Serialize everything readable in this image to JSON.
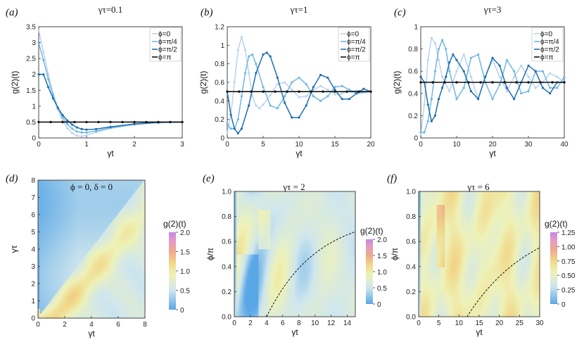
{
  "colors": {
    "phi0": "#bcd3ee",
    "phi_pi4": "#6fb8e2",
    "phi_pi2": "#1f6fb0",
    "phi_pi": "#111111"
  },
  "chart_data": [
    {
      "id": "a",
      "type": "line",
      "panel_label": "(a)",
      "title": "γτ=0.1",
      "xlabel": "γt",
      "ylabel": "g(2)(t)",
      "xlim": [
        0,
        3
      ],
      "ylim": [
        0,
        3.5
      ],
      "xticks": [
        "0",
        "1",
        "2",
        "3"
      ],
      "yticks": [
        "0",
        "0.5",
        "1",
        "1.5",
        "2",
        "2.5",
        "3",
        "3.5"
      ],
      "legend": [
        "ϕ=0",
        "ϕ=π/4",
        "ϕ=π/2",
        "ϕ=π"
      ],
      "series": [
        {
          "name": "ϕ=0",
          "x": [
            0,
            0.1,
            0.2,
            0.3,
            0.4,
            0.5,
            0.6,
            0.7,
            0.8,
            0.9,
            1.0,
            1.2,
            1.5,
            2.0,
            2.5,
            3.0
          ],
          "y": [
            3.4,
            2.7,
            2.0,
            1.4,
            0.9,
            0.55,
            0.3,
            0.15,
            0.07,
            0.05,
            0.08,
            0.18,
            0.3,
            0.42,
            0.48,
            0.5
          ]
        },
        {
          "name": "ϕ=π/4",
          "x": [
            0,
            0.1,
            0.2,
            0.3,
            0.4,
            0.5,
            0.6,
            0.7,
            0.8,
            0.9,
            1.0,
            1.2,
            1.5,
            2.0,
            2.5,
            3.0
          ],
          "y": [
            3.0,
            2.45,
            1.85,
            1.35,
            0.95,
            0.65,
            0.43,
            0.29,
            0.2,
            0.17,
            0.17,
            0.22,
            0.32,
            0.43,
            0.48,
            0.5
          ]
        },
        {
          "name": "ϕ=π/2",
          "x": [
            0,
            0.1,
            0.2,
            0.3,
            0.4,
            0.5,
            0.6,
            0.7,
            0.8,
            0.9,
            1.0,
            1.2,
            1.5,
            2.0,
            2.5,
            3.0
          ],
          "y": [
            2.0,
            2.0,
            1.6,
            1.25,
            0.95,
            0.72,
            0.55,
            0.42,
            0.33,
            0.28,
            0.26,
            0.28,
            0.35,
            0.44,
            0.49,
            0.5
          ]
        },
        {
          "name": "ϕ=π",
          "x": [
            0,
            3
          ],
          "y": [
            0.5,
            0.5
          ]
        }
      ]
    },
    {
      "id": "b",
      "type": "line",
      "panel_label": "(b)",
      "title": "γτ=1",
      "xlabel": "γt",
      "ylabel": "g(2)(t)",
      "xlim": [
        0,
        20
      ],
      "ylim": [
        0,
        1.2
      ],
      "xticks": [
        "0",
        "5",
        "10",
        "15",
        "20"
      ],
      "yticks": [
        "0",
        "0.2",
        "0.4",
        "0.6",
        "0.8",
        "1",
        "1.2"
      ],
      "legend": [
        "ϕ=0",
        "ϕ=π/4",
        "ϕ=π/2",
        "ϕ=π"
      ],
      "series": [
        {
          "name": "ϕ=0",
          "x": [
            0,
            0.5,
            1.0,
            1.5,
            2.0,
            2.5,
            3.0,
            3.5,
            4.0,
            4.5,
            5.0,
            6.0,
            7.0,
            8.0,
            9.0,
            10.0,
            11.0,
            12.0,
            13.0,
            14.0,
            15.0,
            16.0,
            17.0,
            18.0,
            20.0
          ],
          "y": [
            0.05,
            0.25,
            0.6,
            0.95,
            1.09,
            0.95,
            0.7,
            0.45,
            0.35,
            0.32,
            0.36,
            0.46,
            0.58,
            0.6,
            0.52,
            0.44,
            0.45,
            0.52,
            0.56,
            0.52,
            0.47,
            0.48,
            0.51,
            0.51,
            0.5
          ]
        },
        {
          "name": "ϕ=π/4",
          "x": [
            0,
            0.5,
            1.0,
            1.5,
            2.0,
            2.5,
            3.0,
            3.5,
            4.0,
            5.0,
            6.0,
            7.0,
            8.0,
            9.0,
            10.0,
            11.0,
            12.0,
            13.0,
            14.0,
            15.0,
            16.0,
            17.0,
            18.0,
            20.0
          ],
          "y": [
            0.15,
            0.1,
            0.1,
            0.2,
            0.45,
            0.7,
            0.88,
            0.9,
            0.8,
            0.55,
            0.35,
            0.32,
            0.45,
            0.6,
            0.65,
            0.58,
            0.45,
            0.4,
            0.45,
            0.55,
            0.56,
            0.52,
            0.48,
            0.5
          ]
        },
        {
          "name": "ϕ=π/2",
          "x": [
            0,
            0.5,
            1.0,
            1.5,
            2.0,
            3.0,
            4.0,
            5.0,
            5.5,
            6.0,
            7.0,
            8.0,
            9.0,
            10.0,
            11.0,
            12.0,
            13.0,
            14.0,
            15.0,
            16.0,
            17.0,
            18.0,
            19.0,
            20.0
          ],
          "y": [
            0.5,
            0.25,
            0.1,
            0.05,
            0.1,
            0.35,
            0.7,
            0.9,
            0.92,
            0.88,
            0.65,
            0.38,
            0.22,
            0.22,
            0.35,
            0.55,
            0.68,
            0.65,
            0.52,
            0.42,
            0.42,
            0.48,
            0.53,
            0.5
          ]
        },
        {
          "name": "ϕ=π",
          "x": [
            0,
            20
          ],
          "y": [
            0.5,
            0.5
          ]
        }
      ]
    },
    {
      "id": "c",
      "type": "line",
      "panel_label": "(c)",
      "title": "γτ=3",
      "xlabel": "γt",
      "ylabel": "g(2)(t)",
      "xlim": [
        0,
        40
      ],
      "ylim": [
        0,
        1
      ],
      "xticks": [
        "0",
        "10",
        "20",
        "30",
        "40"
      ],
      "yticks": [
        "0",
        "0.2",
        "0.4",
        "0.6",
        "0.8",
        "1"
      ],
      "legend": [
        "ϕ=0",
        "ϕ=π/4",
        "ϕ=π/2",
        "ϕ=π"
      ],
      "series": [
        {
          "name": "ϕ=0",
          "x": [
            0,
            1,
            2,
            3,
            4,
            5,
            6,
            8,
            10,
            12,
            14,
            16,
            18,
            20,
            22,
            24,
            26,
            28,
            30,
            32,
            34,
            36,
            38,
            40
          ],
          "y": [
            0.02,
            0.3,
            0.7,
            0.9,
            0.85,
            0.7,
            0.55,
            0.42,
            0.6,
            0.75,
            0.55,
            0.35,
            0.55,
            0.7,
            0.55,
            0.42,
            0.55,
            0.65,
            0.55,
            0.45,
            0.5,
            0.58,
            0.55,
            0.5
          ]
        },
        {
          "name": "ϕ=π/4",
          "x": [
            0,
            1,
            2,
            3,
            4,
            5,
            6,
            7,
            8,
            10,
            12,
            14,
            16,
            18,
            20,
            22,
            24,
            26,
            28,
            30,
            32,
            34,
            36,
            38,
            40
          ],
          "y": [
            0.05,
            0.05,
            0.15,
            0.35,
            0.6,
            0.8,
            0.88,
            0.8,
            0.6,
            0.35,
            0.45,
            0.72,
            0.75,
            0.5,
            0.35,
            0.48,
            0.7,
            0.6,
            0.4,
            0.42,
            0.6,
            0.6,
            0.45,
            0.45,
            0.55
          ]
        },
        {
          "name": "ϕ=π/2",
          "x": [
            0,
            1,
            2,
            3,
            4,
            5,
            6,
            7,
            8,
            9,
            10,
            12,
            14,
            16,
            18,
            20,
            22,
            24,
            26,
            28,
            30,
            32,
            34,
            36,
            38,
            40
          ],
          "y": [
            0.55,
            0.5,
            0.3,
            0.15,
            0.2,
            0.35,
            0.45,
            0.55,
            0.68,
            0.75,
            0.7,
            0.6,
            0.42,
            0.35,
            0.55,
            0.72,
            0.65,
            0.45,
            0.35,
            0.5,
            0.65,
            0.6,
            0.45,
            0.4,
            0.5,
            0.5
          ]
        },
        {
          "name": "ϕ=π",
          "x": [
            0,
            40
          ],
          "y": [
            0.5,
            0.5
          ]
        }
      ]
    },
    {
      "id": "d",
      "type": "heatmap",
      "panel_label": "(d)",
      "title": "ϕ = 0, δ = 0",
      "xlabel": "γt",
      "ylabel": "γτ",
      "xlim": [
        0,
        8
      ],
      "ylim": [
        0,
        8
      ],
      "xticks": [
        "0",
        "2",
        "4",
        "6",
        "8"
      ],
      "yticks": [
        "0",
        "1",
        "2",
        "3",
        "4",
        "5",
        "6",
        "7",
        "8"
      ],
      "colorbar_label": "g(2)(t)",
      "colorbar_range": [
        0,
        2
      ],
      "colorbar_ticks": [
        "2.0",
        "1.5",
        "1.0",
        "0.5",
        "0"
      ]
    },
    {
      "id": "e",
      "type": "heatmap",
      "panel_label": "(e)",
      "title": "γτ = 2",
      "xlabel": "γt",
      "ylabel": "ϕ/π",
      "xlim": [
        0,
        15
      ],
      "ylim": [
        0,
        1
      ],
      "xticks": [
        "0",
        "2",
        "4",
        "6",
        "8",
        "10",
        "12",
        "14"
      ],
      "yticks": [
        "0.0",
        "0.2",
        "0.4",
        "0.6",
        "0.8",
        "1.0"
      ],
      "colorbar_label": "g(2)(t)",
      "colorbar_range": [
        0,
        2
      ],
      "colorbar_ticks": [
        "2.0",
        "1.5",
        "1.0",
        "0.5",
        "0"
      ]
    },
    {
      "id": "f",
      "type": "heatmap",
      "panel_label": "(f)",
      "title": "γτ = 6",
      "xlabel": "γt",
      "ylabel": "ϕ/π",
      "xlim": [
        0,
        30
      ],
      "ylim": [
        0,
        1
      ],
      "xticks": [
        "0",
        "5",
        "10",
        "15",
        "20",
        "25",
        "30"
      ],
      "yticks": [
        "0.0",
        "0.2",
        "0.4",
        "0.6",
        "0.8",
        "1.0"
      ],
      "colorbar_label": "g(2)(t)",
      "colorbar_range": [
        0,
        1.25
      ],
      "colorbar_ticks": [
        "1.25",
        "1.00",
        "0.75",
        "0.50",
        "0.25",
        "0"
      ]
    }
  ]
}
